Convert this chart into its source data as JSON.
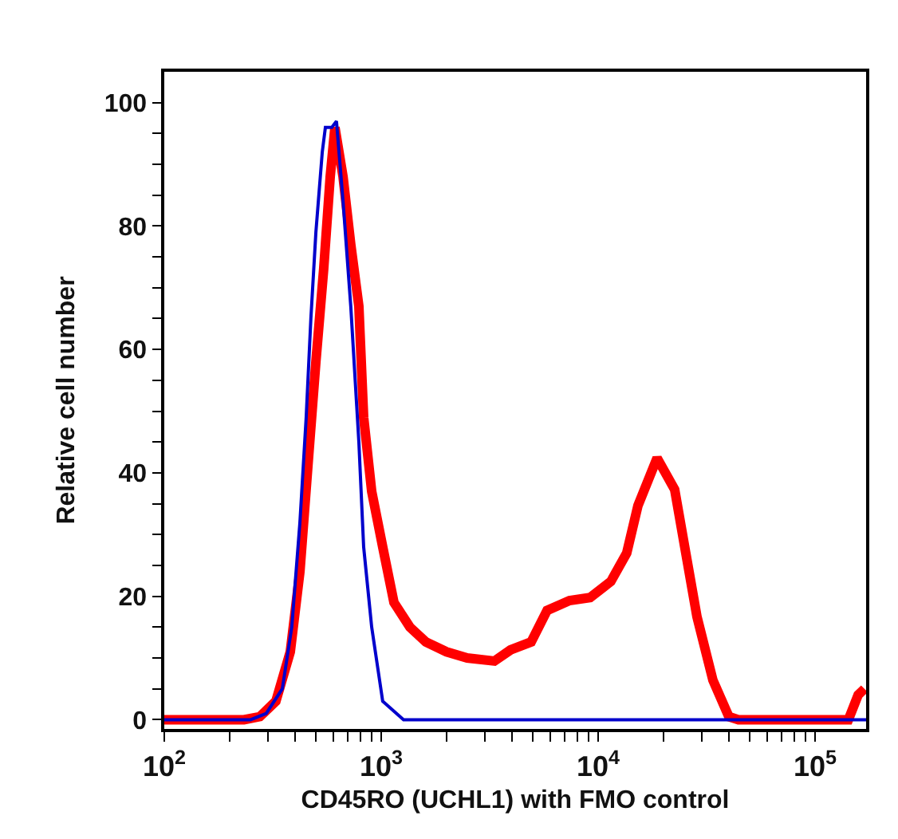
{
  "chart_data": {
    "type": "line",
    "xlabel": "CD45RO (UCHL1) with FMO control",
    "ylabel": "Relative cell number",
    "log": "x",
    "xlim": [
      100,
      172000
    ],
    "ylim": [
      -1.5,
      105
    ],
    "xticks": [
      {
        "value": 100,
        "label": "10$^{2}$"
      },
      {
        "value": 200,
        "label": null
      },
      {
        "value": 300,
        "label": null
      },
      {
        "value": 400,
        "label": null
      },
      {
        "value": 500,
        "label": null
      },
      {
        "value": 600,
        "label": null
      },
      {
        "value": 700,
        "label": null
      },
      {
        "value": 800,
        "label": null
      },
      {
        "value": 900,
        "label": null
      },
      {
        "value": 1000,
        "label": "10$^{3}$"
      },
      {
        "value": 2000,
        "label": null
      },
      {
        "value": 3000,
        "label": null
      },
      {
        "value": 4000,
        "label": null
      },
      {
        "value": 5000,
        "label": null
      },
      {
        "value": 6000,
        "label": null
      },
      {
        "value": 7000,
        "label": null
      },
      {
        "value": 8000,
        "label": null
      },
      {
        "value": 9000,
        "label": null
      },
      {
        "value": 10000,
        "label": "10$^{4}$"
      },
      {
        "value": 20000,
        "label": null
      },
      {
        "value": 30000,
        "label": null
      },
      {
        "value": 40000,
        "label": null
      },
      {
        "value": 50000,
        "label": null
      },
      {
        "value": 60000,
        "label": null
      },
      {
        "value": 70000,
        "label": null
      },
      {
        "value": 80000,
        "label": null
      },
      {
        "value": 90000,
        "label": null
      },
      {
        "value": 100000,
        "label": "10$^{5}$"
      }
    ],
    "yticks": [
      0,
      {
        "value": 5,
        "label": null
      },
      {
        "value": 10,
        "label": null
      },
      {
        "value": 15,
        "label": null
      },
      20,
      {
        "value": 25,
        "label": null
      },
      {
        "value": 30,
        "label": null
      },
      {
        "value": 35,
        "label": null
      },
      40,
      {
        "value": 45,
        "label": null
      },
      {
        "value": 50,
        "label": null
      },
      {
        "value": 55,
        "label": null
      },
      60,
      {
        "value": 65,
        "label": null
      },
      {
        "value": 70,
        "label": null
      },
      {
        "value": 75,
        "label": null
      },
      80,
      {
        "value": 85,
        "label": null
      },
      {
        "value": 90,
        "label": null
      },
      {
        "value": 95,
        "label": null
      },
      100
    ],
    "line_style": "solid",
    "series": [
      {
        "color": "#ff0000",
        "x": [
          100,
          233,
          276,
          327,
          381,
          422,
          459,
          500,
          543,
          582,
          612,
          667,
          724,
          789,
          830,
          904,
          1016,
          1145,
          1356,
          1607,
          2000,
          2493,
          3327,
          3945,
          4913,
          5817,
          7379,
          9190,
          11450,
          13550,
          15270,
          18710,
          22540,
          25370,
          28560,
          33830,
          40060,
          44360,
          142500,
          158000,
          169000
        ],
        "values": [
          0,
          0,
          0.5,
          3,
          11,
          24,
          41,
          58,
          73,
          88,
          96,
          88,
          77,
          67,
          49,
          37,
          28,
          19,
          15,
          12.6,
          11,
          10,
          9.5,
          11.3,
          12.6,
          17.7,
          19.3,
          19.8,
          22.4,
          27,
          34.7,
          42.4,
          37.3,
          27,
          16.7,
          6.4,
          0.5,
          0,
          0,
          4,
          5
        ]
      },
      {
        "color": "#0000cc",
        "x": [
          100,
          250,
          295,
          350,
          387,
          422,
          451,
          474,
          500,
          535,
          553,
          592,
          622,
          667,
          724,
          789,
          830,
          904,
          1016,
          1268,
          172000
        ],
        "values": [
          0,
          0,
          1,
          5,
          15,
          32,
          49,
          65,
          79,
          92,
          96,
          96,
          97,
          84,
          67,
          45,
          28,
          15,
          3,
          0,
          0
        ]
      }
    ]
  }
}
